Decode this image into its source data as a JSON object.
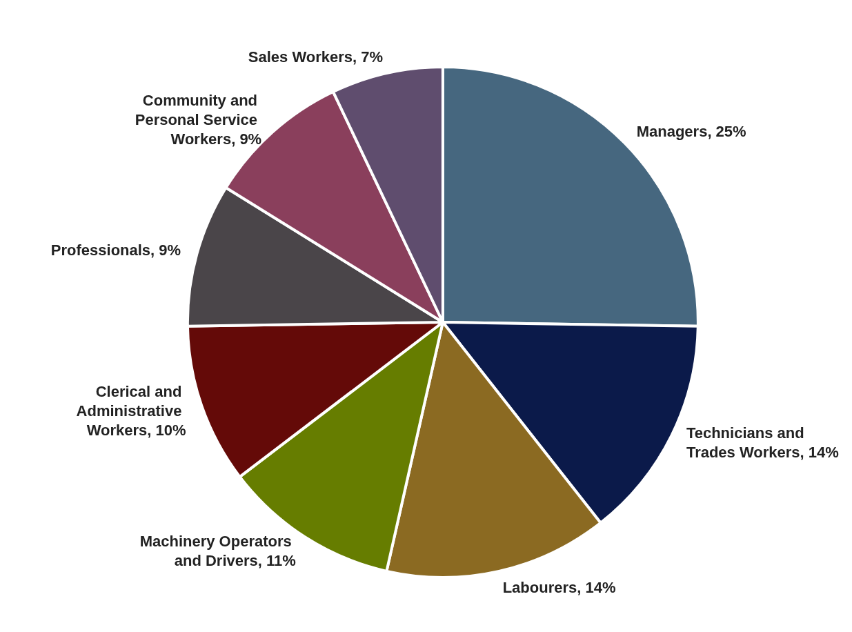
{
  "chart_data": {
    "type": "pie",
    "categories": [
      "Managers",
      "Technicians and Trades Workers",
      "Labourers",
      "Machinery Operators and Drivers",
      "Clerical and Administrative Workers",
      "Professionals",
      "Community and Personal Service Workers",
      "Sales Workers"
    ],
    "values": [
      25,
      14,
      14,
      11,
      10,
      9,
      9,
      7
    ],
    "value_labels": [
      "25%",
      "14%",
      "14%",
      "11%",
      "10%",
      "9%",
      "9%",
      "7%"
    ],
    "colors": [
      "#46677f",
      "#0b1a4a",
      "#8b6a22",
      "#667d00",
      "#640a08",
      "#4a4549",
      "#8a3f5c",
      "#5f4d6e"
    ],
    "legend": false
  }
}
